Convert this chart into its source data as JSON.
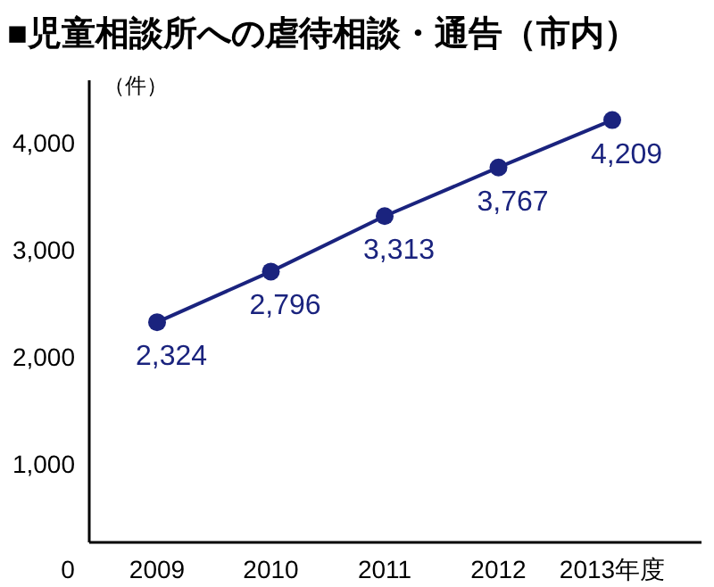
{
  "chart_data": {
    "type": "line",
    "title": "■児童相談所への虐待相談・通告（市内）",
    "ylabel": "（件）",
    "categories": [
      "2009",
      "2010",
      "2011",
      "2012",
      "2013年度"
    ],
    "series": [
      {
        "color": "#1a237e",
        "values": [
          2324,
          2796,
          3313,
          3767,
          4209
        ],
        "value_labels": [
          "2,324",
          "2,796",
          "3,313",
          "3,767",
          "4,209"
        ]
      }
    ],
    "ylim": [
      270,
      4580
    ],
    "yticks": [
      {
        "value": 1000,
        "label": "1,000"
      },
      {
        "value": 2000,
        "label": "2,000"
      },
      {
        "value": 3000,
        "label": "3,000"
      },
      {
        "value": 4000,
        "label": "4,000"
      }
    ],
    "annotations": [
      "0"
    ],
    "marker": "circle",
    "line_style": "solid",
    "grid": false
  }
}
